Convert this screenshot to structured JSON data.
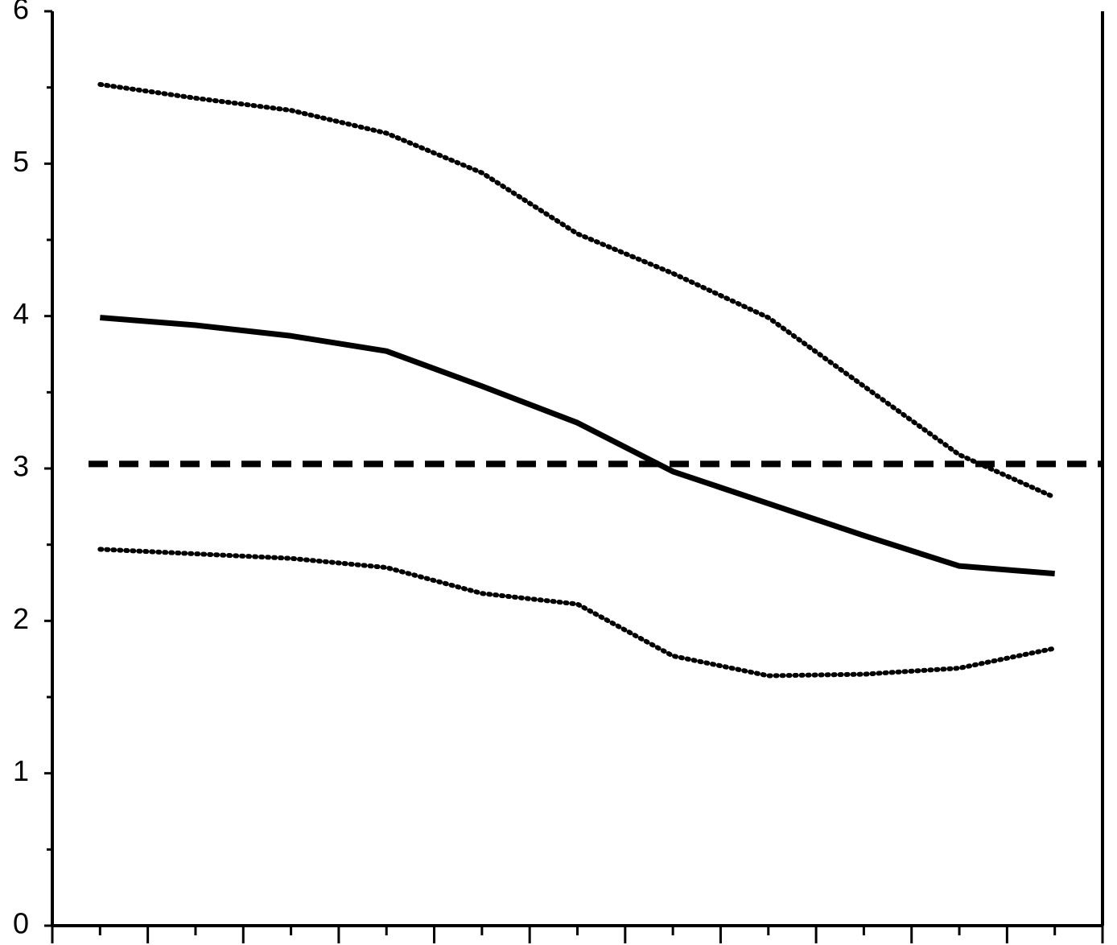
{
  "chart_data": {
    "type": "line",
    "x": [
      1,
      3,
      5,
      7,
      9,
      11,
      13,
      15,
      17,
      19,
      21
    ],
    "series": [
      {
        "color": "#000000",
        "style": "solid",
        "values": [
          3.99,
          3.94,
          3.87,
          3.77,
          3.54,
          3.3,
          2.98,
          2.77,
          2.56,
          2.36,
          2.31
        ]
      },
      {
        "color": "#000000",
        "style": "dotted",
        "values": [
          5.52,
          5.43,
          5.35,
          5.2,
          4.94,
          4.54,
          4.28,
          3.99,
          3.54,
          3.09,
          2.81
        ]
      },
      {
        "color": "#000000",
        "style": "dotted",
        "values": [
          2.47,
          2.44,
          2.41,
          2.35,
          2.18,
          2.11,
          1.77,
          1.64,
          1.65,
          1.69,
          1.82
        ]
      }
    ],
    "reference_line": {
      "value": 3.03,
      "style": "dashed",
      "color": "#000000"
    },
    "xlim": [
      0,
      22
    ],
    "xticks": [
      0,
      1,
      2,
      3,
      4,
      5,
      6,
      7,
      8,
      9,
      10,
      11,
      12,
      13,
      14,
      15,
      16,
      17,
      18,
      19,
      20,
      21,
      22
    ],
    "ylim": [
      0,
      6
    ],
    "yticks": [
      0,
      1,
      2,
      3,
      4,
      5,
      6
    ],
    "minor_yticks": [
      0.5,
      1.5,
      2.5,
      3.5,
      4.5,
      5.5
    ],
    "grid": false
  }
}
